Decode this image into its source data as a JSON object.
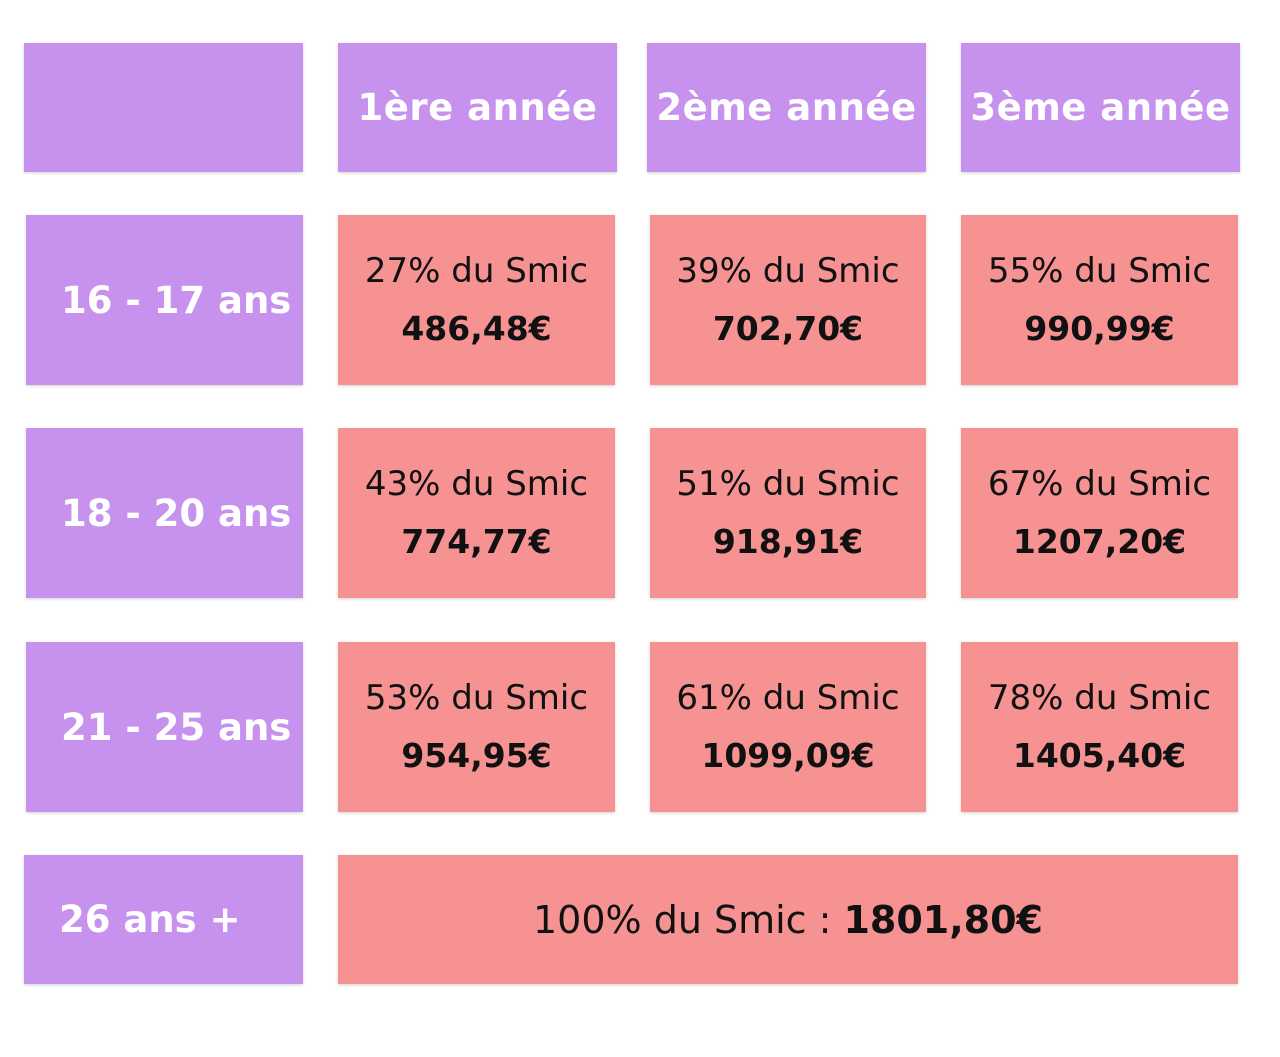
{
  "colors": {
    "header_bg": "#c792ee",
    "value_bg": "#f69292",
    "header_text": "#ffffff",
    "value_text": "#111111"
  },
  "columns": [
    "1ère année",
    "2ème année",
    "3ème année"
  ],
  "rows": [
    {
      "label": "16 - 17 ans",
      "cells": [
        {
          "percent": "27% du Smic",
          "amount": "486,48€"
        },
        {
          "percent": "39% du Smic",
          "amount": "702,70€"
        },
        {
          "percent": "55% du Smic",
          "amount": "990,99€"
        }
      ]
    },
    {
      "label": "18 - 20 ans",
      "cells": [
        {
          "percent": "43% du Smic",
          "amount": "774,77€"
        },
        {
          "percent": "51% du Smic",
          "amount": "918,91€"
        },
        {
          "percent": "67% du Smic",
          "amount": "1207,20€"
        }
      ]
    },
    {
      "label": "21 - 25 ans",
      "cells": [
        {
          "percent": "53% du Smic",
          "amount": "954,95€"
        },
        {
          "percent": "61% du Smic",
          "amount": "1099,09€"
        },
        {
          "percent": "78% du Smic",
          "amount": "1405,40€"
        }
      ]
    }
  ],
  "last_row": {
    "label": "26 ans +",
    "percent": "100% du Smic :",
    "amount": "1801,80€"
  }
}
